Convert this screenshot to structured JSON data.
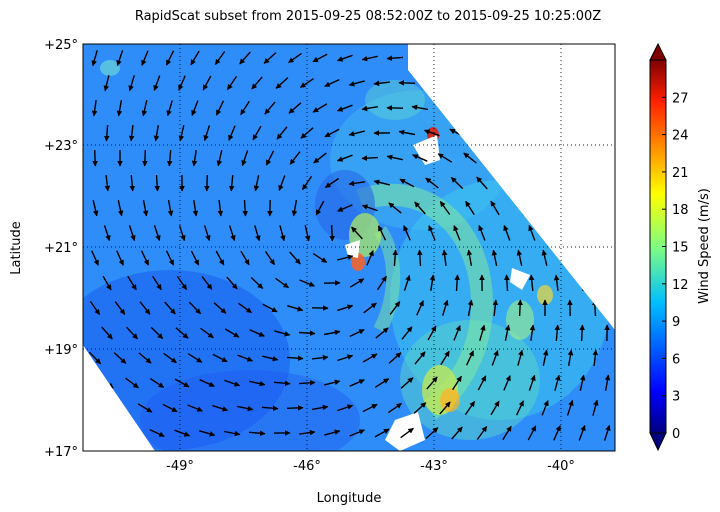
{
  "title": "RapidScat subset from 2015-09-25 08:52:00Z to 2015-09-25 10:25:00Z",
  "map": {
    "xlabel": "Longitude",
    "ylabel": "Latitude",
    "lon_range": [
      -51,
      -38.5
    ],
    "lat_range": [
      17,
      25
    ],
    "lon_ticks": [
      "-49°",
      "-46°",
      "-43°",
      "-40°"
    ],
    "lon_tick_values": [
      -49,
      -46,
      -43,
      -40
    ],
    "lat_ticks": [
      "+25°",
      "+23°",
      "+21°",
      "+19°",
      "+17°"
    ],
    "lat_tick_values": [
      25,
      23,
      21,
      19,
      17
    ],
    "grid": "dotted",
    "storm_center": {
      "lon": -44.8,
      "lat": 21.2
    }
  },
  "colorbar": {
    "label": "Wind Speed (m/s)",
    "ticks": [
      "0",
      "3",
      "6",
      "9",
      "12",
      "15",
      "18",
      "21",
      "24",
      "27"
    ],
    "tick_values": [
      0,
      3,
      6,
      9,
      12,
      15,
      18,
      21,
      24,
      27
    ],
    "range": [
      0,
      30
    ],
    "colormap": "jet",
    "extend": "both"
  },
  "colors": {
    "background_swath": "#2a8cff",
    "high_wind": "#ff2000",
    "arrow": "#000000"
  }
}
